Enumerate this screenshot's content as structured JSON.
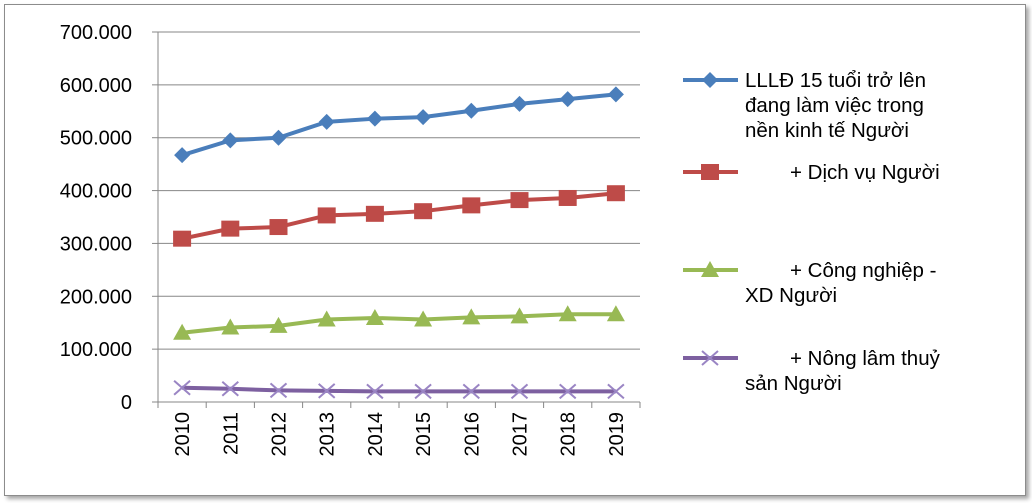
{
  "chart_data": {
    "type": "line",
    "categories": [
      "2010",
      "2011",
      "2012",
      "2013",
      "2014",
      "2015",
      "2016",
      "2017",
      "2018",
      "2019"
    ],
    "ylim": [
      0,
      700000
    ],
    "yticks": [
      0,
      100000,
      200000,
      300000,
      400000,
      500000,
      600000,
      700000
    ],
    "ytick_labels": [
      "0",
      "100.000",
      "200.000",
      "300.000",
      "400.000",
      "500.000",
      "600.000",
      "700.000"
    ],
    "grid": true,
    "legend_position": "right",
    "series": [
      {
        "name": "LLLĐ 15 tuổi trở lên đang làm việc trong nền kinh tế Người",
        "legend_lines": [
          "LLLĐ 15 tuổi trở lên",
          "đang làm việc trong",
          "nền kinh tế Người"
        ],
        "marker": "diamond",
        "color": "#4a7ebb",
        "marker_color": "#4a7ebb",
        "values": [
          467000,
          495000,
          500000,
          530000,
          536000,
          539000,
          551000,
          564000,
          573000,
          582000
        ]
      },
      {
        "name": "+ Dịch vụ Người",
        "legend_lines": [
          "+ Dịch vụ Người"
        ],
        "marker": "square",
        "color": "#be4b48",
        "marker_color": "#be4b48",
        "values": [
          309000,
          328000,
          331000,
          353000,
          356000,
          361000,
          372000,
          382000,
          386000,
          395000
        ]
      },
      {
        "name": "+ Công nghiệp - XD Người",
        "legend_lines": [
          "+ Công nghiệp -",
          "XD Người"
        ],
        "marker": "triangle",
        "color": "#98b954",
        "marker_color": "#98b954",
        "values": [
          131000,
          141000,
          144000,
          156000,
          159000,
          156000,
          160000,
          162000,
          166000,
          166000
        ]
      },
      {
        "name": "+ Nông lâm thuỷ sản Người",
        "legend_lines": [
          "+ Nông lâm thuỷ",
          "sản Người"
        ],
        "marker": "x",
        "color": "#7d60a0",
        "marker_color": "#9a85c4",
        "values": [
          27000,
          25000,
          22000,
          21000,
          20000,
          20000,
          20000,
          20000,
          20000,
          20000
        ]
      }
    ]
  }
}
